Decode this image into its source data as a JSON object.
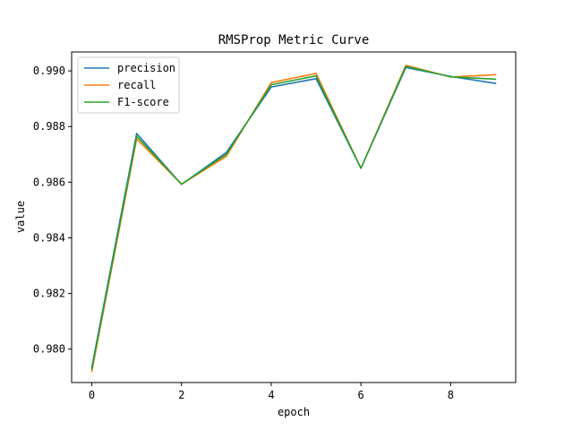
{
  "chart_data": {
    "type": "line",
    "title": "RMSProp Metric Curve",
    "xlabel": "epoch",
    "ylabel": "value",
    "x": [
      0,
      1,
      2,
      3,
      4,
      5,
      6,
      7,
      8,
      9
    ],
    "xlim": [
      -0.45,
      9.45
    ],
    "ylim": [
      0.9788,
      0.99068
    ],
    "xticks": [
      0,
      2,
      4,
      6,
      8
    ],
    "yticks": [
      0.98,
      0.982,
      0.984,
      0.986,
      0.988,
      0.99
    ],
    "xtick_labels": [
      "0",
      "2",
      "4",
      "6",
      "8"
    ],
    "ytick_labels": [
      "0.980",
      "0.982",
      "0.984",
      "0.986",
      "0.988",
      "0.990"
    ],
    "legend_position": "top-left",
    "grid": false,
    "series": [
      {
        "name": "precision",
        "color": "#1f77b4",
        "values": [
          0.97935,
          0.98775,
          0.98592,
          0.98707,
          0.98942,
          0.98972,
          0.9865,
          0.99012,
          0.9898,
          0.98955
        ]
      },
      {
        "name": "recall",
        "color": "#ff7f0e",
        "values": [
          0.9792,
          0.98755,
          0.98593,
          0.98693,
          0.98958,
          0.98991,
          0.9865,
          0.9902,
          0.98978,
          0.98986
        ]
      },
      {
        "name": "F1-score",
        "color": "#2ca02c",
        "values": [
          0.97928,
          0.98765,
          0.98593,
          0.987,
          0.9895,
          0.98982,
          0.9865,
          0.99016,
          0.98979,
          0.9897
        ]
      }
    ]
  }
}
